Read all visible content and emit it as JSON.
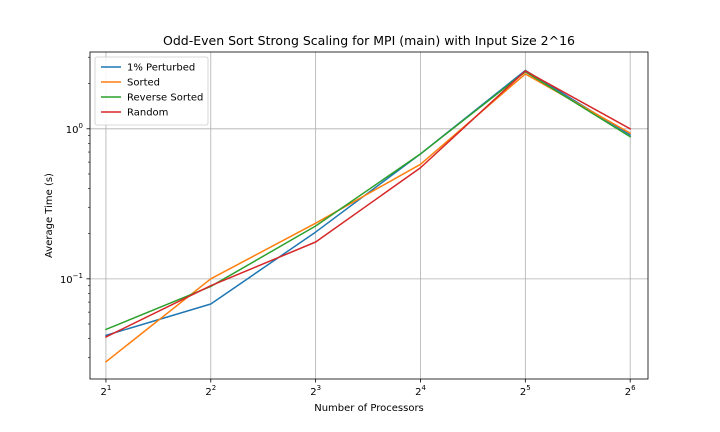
{
  "chart_data": {
    "type": "line",
    "title": "Odd-Even Sort Strong Scaling for MPI (main) with Input Size 2^16",
    "xlabel": "Number of Processors",
    "ylabel": "Average Time (s)",
    "x_scale": "log2",
    "y_scale": "log10",
    "x": [
      2,
      4,
      8,
      16,
      32,
      64
    ],
    "x_tick_labels": [
      {
        "base": "2",
        "exp": "1"
      },
      {
        "base": "2",
        "exp": "2"
      },
      {
        "base": "2",
        "exp": "3"
      },
      {
        "base": "2",
        "exp": "4"
      },
      {
        "base": "2",
        "exp": "5"
      },
      {
        "base": "2",
        "exp": "6"
      }
    ],
    "y_major_ticks": [
      {
        "value": 0.1,
        "base": "10",
        "exp": "−1"
      },
      {
        "value": 1,
        "base": "10",
        "exp": "0"
      }
    ],
    "y_minor_ticks": [
      0.03,
      0.04,
      0.05,
      0.06,
      0.07,
      0.08,
      0.09,
      0.2,
      0.3,
      0.4,
      0.5,
      0.6,
      0.7,
      0.8,
      0.9,
      2,
      3
    ],
    "xlim": [
      1.8,
      72
    ],
    "ylim": [
      0.0215,
      3.25
    ],
    "grid": true,
    "legend_position": "top-left",
    "series": [
      {
        "name": "1% Perturbed",
        "color": "#1f77b4",
        "values": [
          0.042,
          0.068,
          0.205,
          0.68,
          2.45,
          0.91
        ]
      },
      {
        "name": "Sorted",
        "color": "#ff7f0e",
        "values": [
          0.028,
          0.1,
          0.235,
          0.58,
          2.32,
          0.935
        ]
      },
      {
        "name": "Reverse Sorted",
        "color": "#2ca02c",
        "values": [
          0.046,
          0.089,
          0.225,
          0.68,
          2.4,
          0.885
        ]
      },
      {
        "name": "Random",
        "color": "#d62728",
        "values": [
          0.041,
          0.09,
          0.176,
          0.55,
          2.43,
          1.0
        ]
      }
    ]
  }
}
